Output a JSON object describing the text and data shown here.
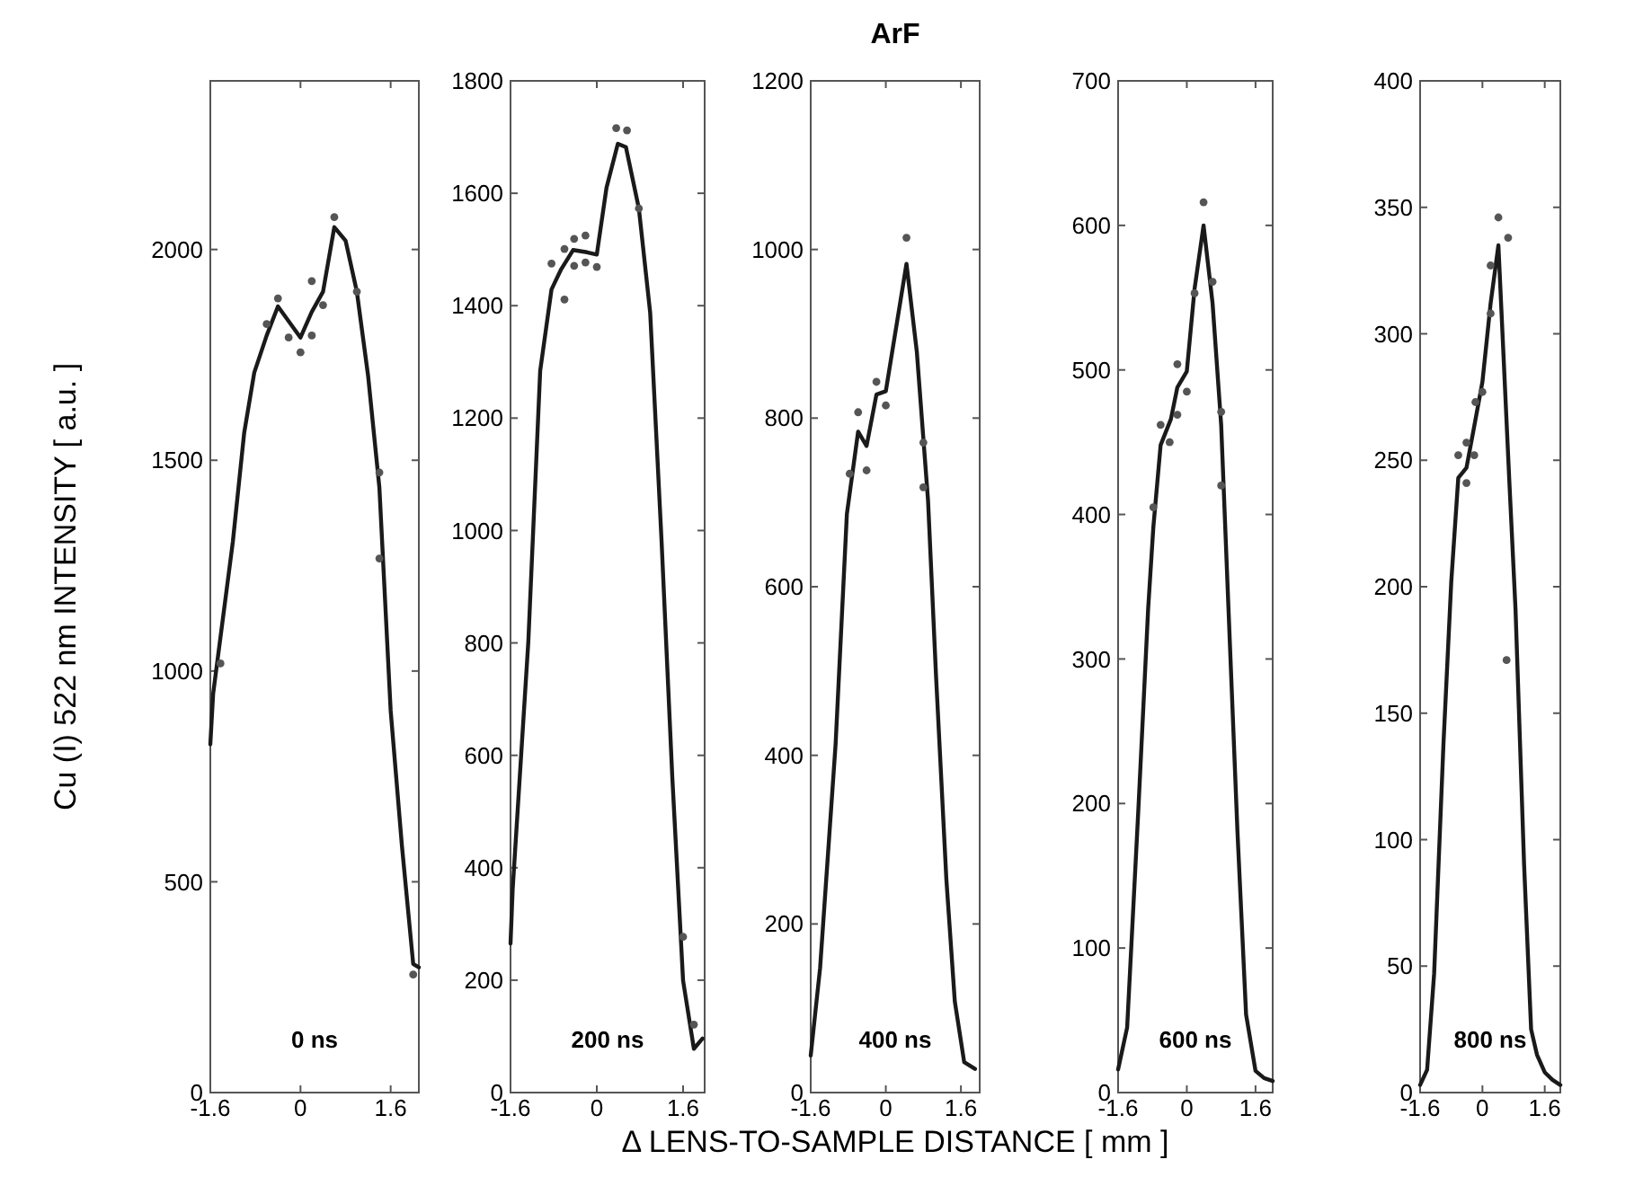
{
  "chart_data": [
    {
      "type": "line",
      "ylabel": "Cu (I) 522 nm INTENSITY [ a.u. ]",
      "annotations": [
        "0 ns"
      ],
      "xlim": [
        -1.6,
        2.1
      ],
      "xticks": [
        -1.6,
        0,
        1.6
      ],
      "ylim": [
        0,
        2400
      ],
      "yticks": [
        0,
        500,
        1000,
        1500,
        2000
      ],
      "grid": false,
      "series": [
        {
          "type": "line",
          "color": "#1a1a1a",
          "line_style": "solid",
          "marker": "none",
          "x": [
            -1.6,
            -1.55,
            -1.2,
            -1.0,
            -0.82,
            -0.6,
            -0.4,
            0,
            0.2,
            0.4,
            0.6,
            0.8,
            1.0,
            1.2,
            1.4,
            1.6,
            1.8,
            2.0,
            2.1
          ],
          "values": [
            826,
            946,
            1307,
            1564,
            1708,
            1796,
            1865,
            1791,
            1852,
            1900,
            2053,
            2021,
            1900,
            1700,
            1435,
            906,
            585,
            305,
            297
          ]
        },
        {
          "type": "scatter",
          "color": "#555555",
          "marker": "circle",
          "x": [
            -1.42,
            -0.6,
            -0.4,
            -0.21,
            0,
            0.2,
            0.2,
            0.4,
            0.6,
            1.0,
            1.4,
            1.4,
            2.0
          ],
          "values": [
            1018,
            1823,
            1884,
            1791,
            1756,
            1925,
            1796,
            1868,
            2077,
            1900,
            1471,
            1267,
            280
          ]
        }
      ]
    },
    {
      "type": "line",
      "annotations": [
        "200 ns"
      ],
      "xlim": [
        -1.6,
        2.0
      ],
      "xticks": [
        -1.6,
        0,
        1.6
      ],
      "ylim": [
        0,
        1800
      ],
      "yticks": [
        0,
        200,
        400,
        600,
        800,
        1000,
        1200,
        1400,
        1600,
        1800
      ],
      "grid": false,
      "series": [
        {
          "type": "line",
          "color": "#1a1a1a",
          "line_style": "solid",
          "marker": "none",
          "x": [
            -1.6,
            -1.56,
            -1.27,
            -1.05,
            -0.84,
            -0.66,
            -0.44,
            -0.18,
            0,
            0.18,
            0.39,
            0.54,
            0.78,
            0.99,
            1.2,
            1.4,
            1.6,
            1.8,
            1.96
          ],
          "values": [
            265,
            362,
            802,
            1284,
            1429,
            1465,
            1499,
            1495,
            1491,
            1610,
            1688,
            1682,
            1573,
            1387,
            983,
            561,
            199,
            78,
            96
          ]
        },
        {
          "type": "scatter",
          "color": "#555555",
          "marker": "circle",
          "x": [
            -0.84,
            -0.6,
            -0.42,
            -0.21,
            -0.42,
            -0.21,
            0,
            -0.6,
            0.36,
            0.56,
            0.78,
            1.6,
            1.8
          ],
          "values": [
            1475,
            1501,
            1519,
            1525,
            1471,
            1477,
            1469,
            1411,
            1716,
            1712,
            1573,
            277,
            121
          ]
        }
      ]
    },
    {
      "type": "line",
      "title": "ArF",
      "xlabel": "Δ LENS-TO-SAMPLE DISTANCE [ mm ]",
      "annotations": [
        "400 ns"
      ],
      "xlim": [
        -1.6,
        2.0
      ],
      "xticks": [
        -1.6,
        0,
        1.6
      ],
      "ylim": [
        0,
        1200
      ],
      "yticks": [
        0,
        200,
        400,
        600,
        800,
        1000,
        1200
      ],
      "grid": false,
      "series": [
        {
          "type": "line",
          "color": "#1a1a1a",
          "line_style": "solid",
          "marker": "none",
          "x": [
            -1.6,
            -1.4,
            -1.07,
            -0.83,
            -0.59,
            -0.41,
            -0.2,
            0,
            0.44,
            0.66,
            0.9,
            1.07,
            1.29,
            1.47,
            1.67,
            1.9
          ],
          "values": [
            44,
            148,
            413,
            686,
            784,
            767,
            828,
            832,
            983,
            879,
            702,
            494,
            253,
            108,
            36,
            28
          ]
        },
        {
          "type": "scatter",
          "color": "#555555",
          "marker": "circle",
          "x": [
            -0.59,
            -0.77,
            -0.41,
            -0.2,
            0,
            0.44,
            0.8,
            0.8
          ],
          "values": [
            807,
            734,
            738,
            843,
            815,
            1014,
            771,
            718
          ]
        }
      ]
    },
    {
      "type": "line",
      "annotations": [
        "600 ns"
      ],
      "xlim": [
        -1.6,
        2.0
      ],
      "xticks": [
        -1.6,
        0,
        1.6
      ],
      "ylim": [
        0,
        700
      ],
      "yticks": [
        0,
        100,
        200,
        300,
        400,
        500,
        600,
        700
      ],
      "grid": false,
      "series": [
        {
          "type": "line",
          "color": "#1a1a1a",
          "line_style": "solid",
          "marker": "none",
          "x": [
            -1.6,
            -1.39,
            -1.13,
            -0.9,
            -0.78,
            -0.61,
            -0.37,
            -0.22,
            0,
            0.18,
            0.39,
            0.6,
            0.8,
            0.97,
            1.18,
            1.38,
            1.6,
            1.8,
            2.0
          ],
          "values": [
            16,
            45,
            195,
            335,
            391,
            448,
            466,
            488,
            499,
            556,
            600,
            546,
            462,
            335,
            180,
            54,
            15,
            10,
            8
          ]
        },
        {
          "type": "scatter",
          "color": "#555555",
          "marker": "circle",
          "x": [
            -0.61,
            -0.4,
            -0.22,
            0,
            -0.22,
            0.39,
            0.18,
            0.6,
            0.8,
            0.8,
            -0.78
          ],
          "values": [
            462,
            450,
            469,
            485,
            504,
            616,
            553,
            561,
            471,
            420,
            405
          ]
        }
      ]
    },
    {
      "type": "line",
      "annotations": [
        "800 ns"
      ],
      "xlim": [
        -1.6,
        2.0
      ],
      "xticks": [
        -1.6,
        0,
        1.6
      ],
      "ylim": [
        0,
        400
      ],
      "yticks": [
        0,
        50,
        100,
        150,
        200,
        250,
        300,
        350,
        400
      ],
      "grid": false,
      "series": [
        {
          "type": "line",
          "color": "#1a1a1a",
          "line_style": "solid",
          "marker": "none",
          "x": [
            -1.6,
            -1.42,
            -1.24,
            -1.0,
            -0.8,
            -0.62,
            -0.41,
            -0.24,
            0,
            0.21,
            0.41,
            0.69,
            0.85,
            1.07,
            1.25,
            1.4,
            1.6,
            1.8,
            2.0
          ],
          "values": [
            3,
            9,
            47,
            138,
            202,
            243,
            247,
            261,
            281,
            312,
            335,
            242,
            191,
            90,
            25,
            15,
            8,
            5,
            3
          ]
        },
        {
          "type": "scatter",
          "color": "#555555",
          "marker": "circle",
          "x": [
            -0.62,
            -0.41,
            -0.41,
            -0.21,
            -0.18,
            0,
            0.21,
            0.21,
            0.41,
            0.66,
            0.62
          ],
          "values": [
            252,
            241,
            257,
            252,
            273,
            277,
            308,
            327,
            346,
            338,
            171
          ]
        }
      ]
    }
  ]
}
